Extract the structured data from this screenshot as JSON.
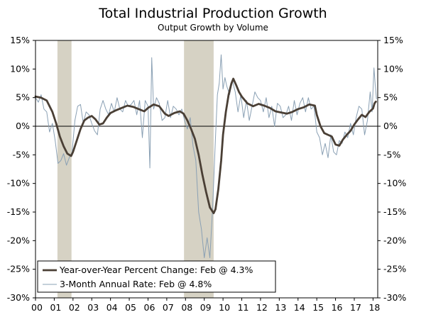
{
  "chart_data": {
    "type": "line",
    "title": "Total Industrial Production Growth",
    "subtitle": "Output Growth by Volume",
    "x_tick_labels": [
      "00",
      "01",
      "02",
      "03",
      "04",
      "05",
      "06",
      "07",
      "08",
      "09",
      "10",
      "11",
      "12",
      "13",
      "14",
      "15",
      "16",
      "17",
      "18"
    ],
    "y_tick_labels": [
      "15%",
      "10%",
      "5%",
      "0%",
      "-5%",
      "-10%",
      "-15%",
      "-20%",
      "-25%",
      "-30%"
    ],
    "y_tick_values": [
      15,
      10,
      5,
      0,
      -5,
      -10,
      -15,
      -20,
      -25,
      -30
    ],
    "xlim": [
      2000.0,
      2018.25
    ],
    "ylim": [
      -30,
      15
    ],
    "recession_shading": [
      [
        2001.17,
        2001.92
      ],
      [
        2007.92,
        2009.5
      ]
    ],
    "series": [
      {
        "name": "Year-over-Year Percent Change: Feb @ 4.3%",
        "color": "#4a3f35",
        "style": "thick",
        "points": [
          [
            2000.0,
            5.2
          ],
          [
            2000.3,
            5.0
          ],
          [
            2000.6,
            4.5
          ],
          [
            2000.9,
            2.5
          ],
          [
            2001.1,
            0.5
          ],
          [
            2001.3,
            -1.8
          ],
          [
            2001.5,
            -3.5
          ],
          [
            2001.7,
            -4.8
          ],
          [
            2001.9,
            -5.2
          ],
          [
            2002.0,
            -4.5
          ],
          [
            2002.2,
            -2.5
          ],
          [
            2002.4,
            -0.5
          ],
          [
            2002.6,
            1.0
          ],
          [
            2002.8,
            1.5
          ],
          [
            2003.0,
            1.8
          ],
          [
            2003.2,
            1.2
          ],
          [
            2003.4,
            0.3
          ],
          [
            2003.6,
            0.5
          ],
          [
            2003.8,
            1.5
          ],
          [
            2004.0,
            2.3
          ],
          [
            2004.3,
            2.8
          ],
          [
            2004.6,
            3.2
          ],
          [
            2004.9,
            3.6
          ],
          [
            2005.2,
            3.4
          ],
          [
            2005.5,
            3.0
          ],
          [
            2005.8,
            2.6
          ],
          [
            2006.0,
            3.2
          ],
          [
            2006.3,
            3.8
          ],
          [
            2006.6,
            3.5
          ],
          [
            2006.9,
            2.2
          ],
          [
            2007.1,
            1.8
          ],
          [
            2007.4,
            2.3
          ],
          [
            2007.7,
            2.6
          ],
          [
            2007.9,
            2.2
          ],
          [
            2008.1,
            1.0
          ],
          [
            2008.3,
            -0.5
          ],
          [
            2008.5,
            -2.2
          ],
          [
            2008.7,
            -5.0
          ],
          [
            2008.9,
            -8.5
          ],
          [
            2009.1,
            -11.5
          ],
          [
            2009.3,
            -14.2
          ],
          [
            2009.5,
            -15.2
          ],
          [
            2009.6,
            -14.5
          ],
          [
            2009.75,
            -11.0
          ],
          [
            2009.9,
            -6.0
          ],
          [
            2010.0,
            -1.5
          ],
          [
            2010.15,
            2.5
          ],
          [
            2010.3,
            5.5
          ],
          [
            2010.45,
            7.5
          ],
          [
            2010.55,
            8.3
          ],
          [
            2010.7,
            7.2
          ],
          [
            2010.85,
            6.0
          ],
          [
            2011.0,
            5.2
          ],
          [
            2011.3,
            4.0
          ],
          [
            2011.6,
            3.5
          ],
          [
            2011.9,
            3.9
          ],
          [
            2012.2,
            3.6
          ],
          [
            2012.5,
            3.2
          ],
          [
            2012.8,
            2.6
          ],
          [
            2013.1,
            2.4
          ],
          [
            2013.4,
            2.2
          ],
          [
            2013.7,
            2.5
          ],
          [
            2014.0,
            3.0
          ],
          [
            2014.3,
            3.3
          ],
          [
            2014.6,
            3.8
          ],
          [
            2014.9,
            3.6
          ],
          [
            2015.0,
            2.0
          ],
          [
            2015.2,
            0.0
          ],
          [
            2015.4,
            -1.2
          ],
          [
            2015.6,
            -1.5
          ],
          [
            2015.8,
            -1.8
          ],
          [
            2016.0,
            -3.2
          ],
          [
            2016.2,
            -3.4
          ],
          [
            2016.4,
            -2.3
          ],
          [
            2016.6,
            -1.5
          ],
          [
            2016.8,
            -0.8
          ],
          [
            2017.0,
            0.3
          ],
          [
            2017.2,
            1.2
          ],
          [
            2017.4,
            2.0
          ],
          [
            2017.6,
            1.6
          ],
          [
            2017.8,
            2.5
          ],
          [
            2018.0,
            3.1
          ],
          [
            2018.08,
            4.0
          ],
          [
            2018.15,
            4.3
          ]
        ]
      },
      {
        "name": "3-Month Annual Rate: Feb @ 4.8%",
        "color": "#8aa0b4",
        "style": "thin",
        "points": [
          [
            2000.0,
            5.0
          ],
          [
            2000.15,
            4.2
          ],
          [
            2000.3,
            5.5
          ],
          [
            2000.45,
            3.0
          ],
          [
            2000.6,
            2.5
          ],
          [
            2000.75,
            -1.0
          ],
          [
            2000.9,
            0.5
          ],
          [
            2001.05,
            -2.5
          ],
          [
            2001.2,
            -6.5
          ],
          [
            2001.35,
            -6.0
          ],
          [
            2001.5,
            -4.8
          ],
          [
            2001.65,
            -6.8
          ],
          [
            2001.8,
            -5.5
          ],
          [
            2001.95,
            -4.5
          ],
          [
            2002.1,
            1.0
          ],
          [
            2002.25,
            3.5
          ],
          [
            2002.4,
            3.8
          ],
          [
            2002.55,
            0.5
          ],
          [
            2002.7,
            2.5
          ],
          [
            2002.85,
            2.0
          ],
          [
            2003.0,
            0.5
          ],
          [
            2003.15,
            -0.8
          ],
          [
            2003.3,
            -1.5
          ],
          [
            2003.45,
            3.0
          ],
          [
            2003.6,
            4.5
          ],
          [
            2003.75,
            3.0
          ],
          [
            2003.9,
            2.0
          ],
          [
            2004.05,
            4.0
          ],
          [
            2004.2,
            2.5
          ],
          [
            2004.35,
            5.0
          ],
          [
            2004.5,
            3.0
          ],
          [
            2004.65,
            2.5
          ],
          [
            2004.8,
            4.5
          ],
          [
            2004.95,
            3.5
          ],
          [
            2005.1,
            3.8
          ],
          [
            2005.25,
            4.5
          ],
          [
            2005.4,
            2.0
          ],
          [
            2005.55,
            4.5
          ],
          [
            2005.7,
            -2.0
          ],
          [
            2005.85,
            4.5
          ],
          [
            2006.0,
            3.5
          ],
          [
            2006.1,
            -7.3
          ],
          [
            2006.2,
            12.0
          ],
          [
            2006.3,
            3.0
          ],
          [
            2006.45,
            5.0
          ],
          [
            2006.6,
            4.0
          ],
          [
            2006.75,
            1.0
          ],
          [
            2006.9,
            1.5
          ],
          [
            2007.05,
            4.5
          ],
          [
            2007.2,
            1.5
          ],
          [
            2007.35,
            3.5
          ],
          [
            2007.5,
            3.0
          ],
          [
            2007.65,
            2.0
          ],
          [
            2007.8,
            3.0
          ],
          [
            2007.95,
            1.0
          ],
          [
            2008.1,
            -0.5
          ],
          [
            2008.25,
            1.5
          ],
          [
            2008.4,
            -3.5
          ],
          [
            2008.55,
            -6.0
          ],
          [
            2008.7,
            -15.0
          ],
          [
            2008.85,
            -18.0
          ],
          [
            2009.0,
            -23.0
          ],
          [
            2009.15,
            -19.5
          ],
          [
            2009.3,
            -23.0
          ],
          [
            2009.45,
            -14.0
          ],
          [
            2009.6,
            -2.0
          ],
          [
            2009.7,
            5.5
          ],
          [
            2009.8,
            7.5
          ],
          [
            2009.9,
            12.5
          ],
          [
            2010.0,
            6.5
          ],
          [
            2010.1,
            8.5
          ],
          [
            2010.2,
            7.0
          ],
          [
            2010.35,
            5.5
          ],
          [
            2010.5,
            8.0
          ],
          [
            2010.65,
            6.0
          ],
          [
            2010.8,
            2.5
          ],
          [
            2010.95,
            5.5
          ],
          [
            2011.1,
            1.5
          ],
          [
            2011.25,
            4.5
          ],
          [
            2011.4,
            1.0
          ],
          [
            2011.55,
            3.5
          ],
          [
            2011.7,
            6.0
          ],
          [
            2011.85,
            5.0
          ],
          [
            2012.0,
            4.5
          ],
          [
            2012.15,
            2.5
          ],
          [
            2012.3,
            5.0
          ],
          [
            2012.45,
            1.5
          ],
          [
            2012.6,
            3.5
          ],
          [
            2012.75,
            0.0
          ],
          [
            2012.9,
            4.0
          ],
          [
            2013.05,
            3.5
          ],
          [
            2013.2,
            1.5
          ],
          [
            2013.35,
            2.0
          ],
          [
            2013.5,
            3.5
          ],
          [
            2013.65,
            1.0
          ],
          [
            2013.8,
            4.5
          ],
          [
            2013.95,
            2.0
          ],
          [
            2014.1,
            4.0
          ],
          [
            2014.25,
            5.0
          ],
          [
            2014.4,
            2.5
          ],
          [
            2014.55,
            5.0
          ],
          [
            2014.7,
            3.0
          ],
          [
            2014.85,
            3.5
          ],
          [
            2015.0,
            -1.0
          ],
          [
            2015.15,
            -2.0
          ],
          [
            2015.3,
            -5.0
          ],
          [
            2015.45,
            -3.0
          ],
          [
            2015.6,
            -5.5
          ],
          [
            2015.75,
            -1.5
          ],
          [
            2015.9,
            -4.5
          ],
          [
            2016.05,
            -5.0
          ],
          [
            2016.2,
            -2.5
          ],
          [
            2016.35,
            -3.0
          ],
          [
            2016.5,
            -1.0
          ],
          [
            2016.65,
            -2.0
          ],
          [
            2016.8,
            0.5
          ],
          [
            2016.95,
            -1.5
          ],
          [
            2017.1,
            1.5
          ],
          [
            2017.25,
            3.5
          ],
          [
            2017.4,
            3.0
          ],
          [
            2017.55,
            -1.5
          ],
          [
            2017.7,
            1.0
          ],
          [
            2017.85,
            6.0
          ],
          [
            2017.95,
            2.5
          ],
          [
            2018.05,
            10.2
          ],
          [
            2018.12,
            7.0
          ],
          [
            2018.18,
            4.8
          ]
        ]
      }
    ],
    "legend": {
      "position": "bottom-left"
    }
  }
}
